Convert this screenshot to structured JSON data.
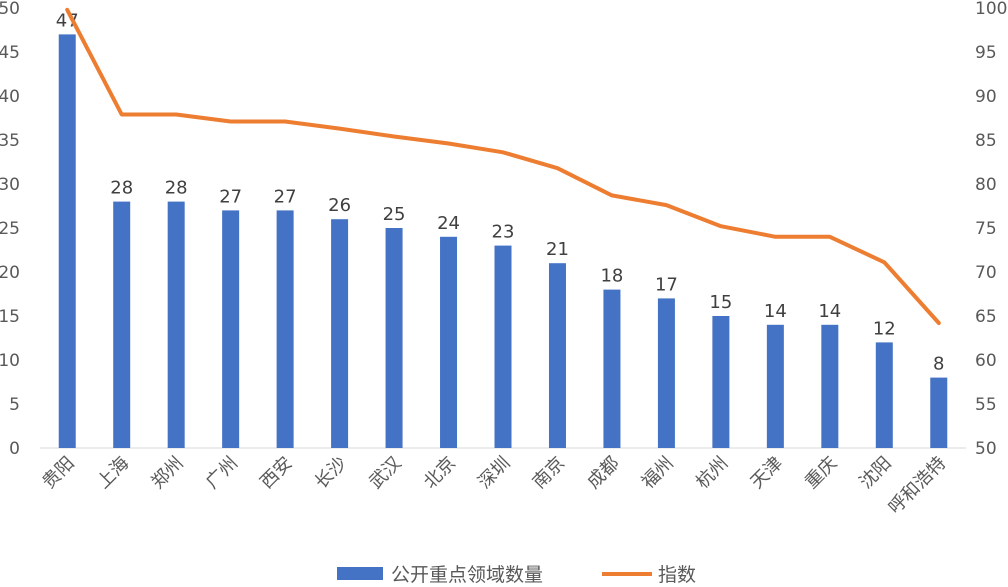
{
  "chart_data": {
    "type": "bar",
    "categories": [
      "贵阳",
      "上海",
      "郑州",
      "广州",
      "西安",
      "长沙",
      "武汉",
      "北京",
      "深圳",
      "南京",
      "成都",
      "福州",
      "杭州",
      "天津",
      "重庆",
      "沈阳",
      "呼和浩特"
    ],
    "series": [
      {
        "name": "公开重点领域数量",
        "type": "bar",
        "axis": "left",
        "color": "#4472C4",
        "values": [
          47,
          28,
          28,
          27,
          27,
          26,
          25,
          24,
          23,
          21,
          18,
          17,
          15,
          14,
          14,
          12,
          8
        ],
        "data_labels": [
          "47",
          "28",
          "28",
          "27",
          "27",
          "26",
          "25",
          "24",
          "23",
          "21",
          "18",
          "17",
          "15",
          "14",
          "14",
          "12",
          "8"
        ]
      },
      {
        "name": "指数",
        "type": "line",
        "axis": "right",
        "color": "#ED7D31",
        "values": [
          99.8,
          87.9,
          87.9,
          87.1,
          87.1,
          86.3,
          85.4,
          84.6,
          83.6,
          81.8,
          78.7,
          77.6,
          75.2,
          74.0,
          74.0,
          71.1,
          64.2
        ]
      }
    ],
    "left_axis": {
      "ylim": [
        0,
        50
      ],
      "ticks": [
        "0",
        "5",
        "10",
        "15",
        "20",
        "25",
        "30",
        "35",
        "40",
        "45",
        "50"
      ]
    },
    "right_axis": {
      "ylim": [
        50,
        100
      ],
      "ticks": [
        "50",
        "55",
        "60",
        "65",
        "70",
        "75",
        "80",
        "85",
        "90",
        "95",
        "100"
      ]
    },
    "grid": false,
    "legend_position": "bottom",
    "title": "",
    "xlabel": "",
    "ylabel": ""
  }
}
